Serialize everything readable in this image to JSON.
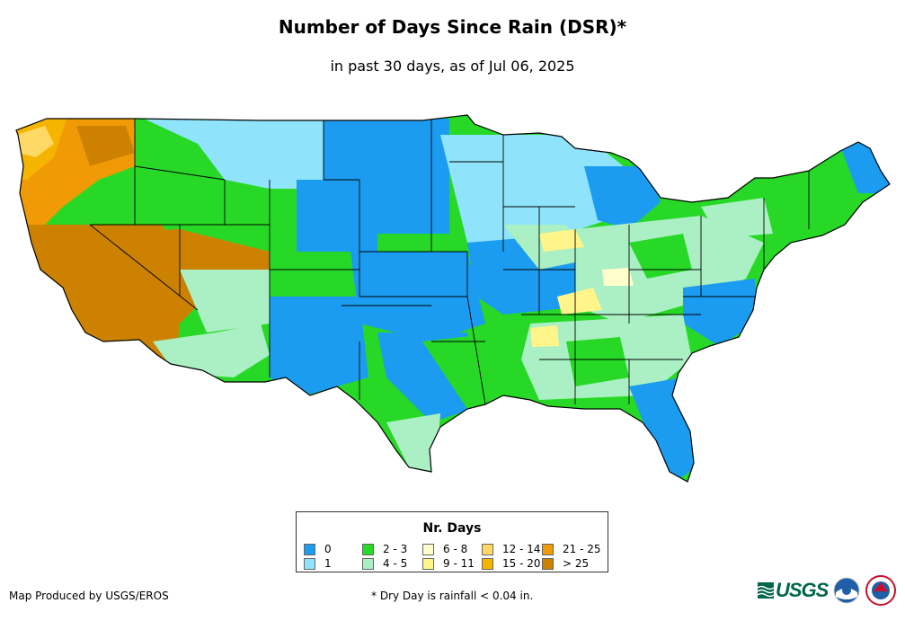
{
  "title": "Number of Days Since Rain (DSR)*",
  "subtitle": "in past 30 days, as of Jul 06, 2025",
  "legend": {
    "title": "Nr. Days",
    "items": [
      {
        "label": "0",
        "color": "#1b9cf0"
      },
      {
        "label": "1",
        "color": "#8fe4fb"
      },
      {
        "label": "2 - 3",
        "color": "#27d926"
      },
      {
        "label": "4 - 5",
        "color": "#aaf0c4"
      },
      {
        "label": "6 - 8",
        "color": "#ffffcc"
      },
      {
        "label": "9 - 11",
        "color": "#fff58a"
      },
      {
        "label": "12 - 14",
        "color": "#ffd966"
      },
      {
        "label": "15 - 20",
        "color": "#f5b400"
      },
      {
        "label": "21 - 25",
        "color": "#f09b05"
      },
      {
        "label": "> 25",
        "color": "#cc8200"
      }
    ]
  },
  "credit": "Map Produced by USGS/EROS",
  "footnote": "* Dry Day is rainfall < 0.04 in.",
  "logos": {
    "usgs": "USGS",
    "usgs_icon": "usgs-wave-icon",
    "noaa_icon": "noaa-logo-icon",
    "nws_icon": "nws-logo-icon"
  }
}
